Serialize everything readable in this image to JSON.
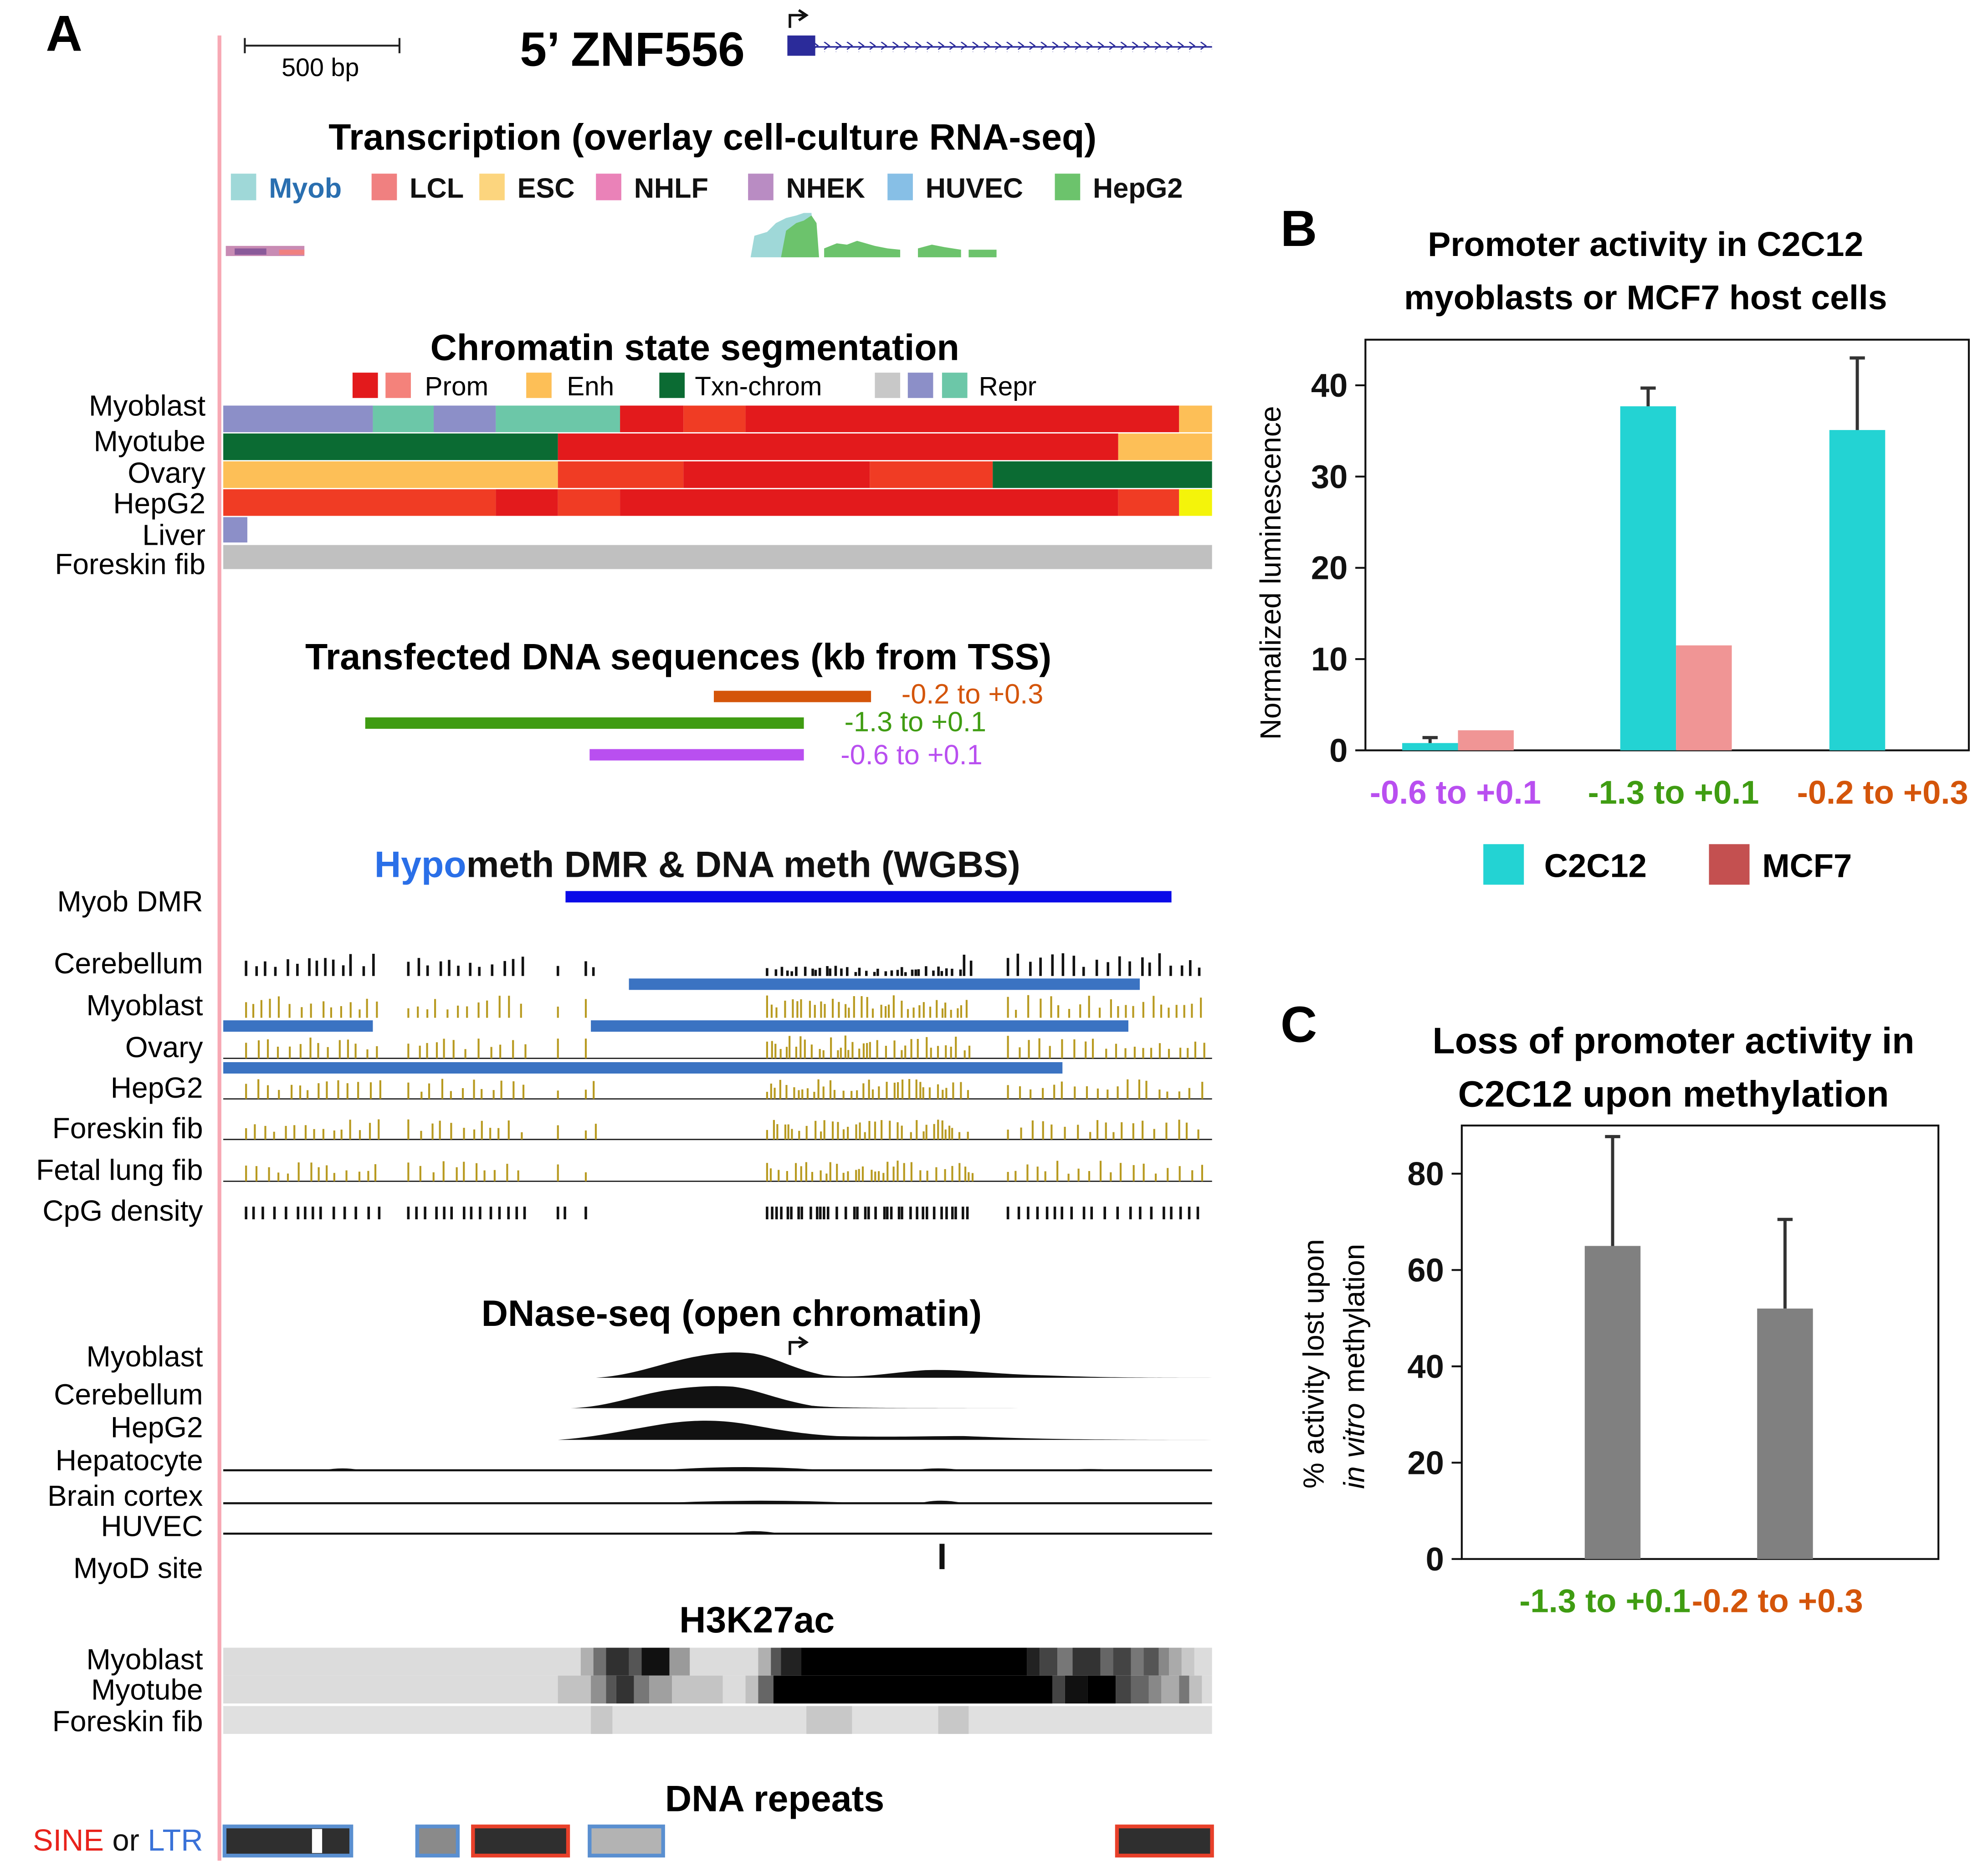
{
  "panel_a": {
    "letter": "A",
    "scale_label": "500 bp",
    "gene_label": "5’ ZNF556",
    "transcription": {
      "title": "Transcription (overlay cell-culture RNA-seq)",
      "legend": [
        {
          "label": "Myob",
          "color": "#9fd8d8",
          "text_color": "#2a6fb0"
        },
        {
          "label": "LCL",
          "color": "#f08080",
          "text_color": "#111111"
        },
        {
          "label": "ESC",
          "color": "#fcd57e",
          "text_color": "#111111"
        },
        {
          "label": "NHLF",
          "color": "#ea82b8",
          "text_color": "#111111"
        },
        {
          "label": "NHEK",
          "color": "#b98cc3",
          "text_color": "#111111"
        },
        {
          "label": "HUVEC",
          "color": "#87bfe6",
          "text_color": "#111111"
        },
        {
          "label": "HepG2",
          "color": "#6cc36c",
          "text_color": "#111111"
        }
      ]
    },
    "chromatin": {
      "title": "Chromatin state segmentation",
      "legend": {
        "prom": "Prom",
        "enh": "Enh",
        "txn": "Txn-chrom",
        "repr": "Repr"
      },
      "rows": [
        "Myoblast",
        "Myotube",
        "Ovary",
        "HepG2",
        "Liver",
        "Foreskin fib"
      ]
    },
    "transfected": {
      "title": "Transfected DNA sequences (kb from TSS)",
      "constructs": [
        {
          "label": "-0.2 to +0.3",
          "color": "#d4550a"
        },
        {
          "label": "-1.3 to +0.1",
          "color": "#3f9c12"
        },
        {
          "label": "-0.6 to +0.1",
          "color": "#b94ff0"
        }
      ]
    },
    "methylation": {
      "title_hypo": "Hypo",
      "title_rest": "meth DMR & DNA meth (WGBS)",
      "dmr_label": "Myob DMR",
      "rows": [
        "Cerebellum",
        "Myoblast",
        "Ovary",
        "HepG2",
        "Foreskin fib",
        "Fetal lung fib",
        "CpG density"
      ]
    },
    "dnase": {
      "title": "DNase-seq (open chromatin)",
      "rows": [
        "Myoblast",
        "Cerebellum",
        "HepG2",
        "Hepatocyte",
        "Brain cortex",
        "HUVEC"
      ],
      "myod_label": "MyoD site"
    },
    "h3k27ac": {
      "title": "H3K27ac",
      "rows": [
        "Myoblast",
        "Myotube",
        "Foreskin fib"
      ]
    },
    "repeats": {
      "title": "DNA repeats",
      "sine": "SINE",
      "or": "or",
      "ltr": "LTR"
    }
  },
  "chart_data": [
    {
      "panel": "B",
      "type": "bar",
      "title": "Promoter activity in C2C12 myoblasts or MCF7 host cells",
      "title_lines": [
        "Promoter activity in C2C12",
        "myoblasts or MCF7 host cells"
      ],
      "xlabel": "",
      "ylabel": "Normalized luminescence",
      "ylim": [
        0,
        45
      ],
      "yticks": [
        0,
        10,
        20,
        30,
        40
      ],
      "categories": [
        "-0.6 to +0.1",
        "-1.3 to +0.1",
        "-0.2 to +0.3"
      ],
      "category_colors": [
        "#b94ff0",
        "#3f9c12",
        "#d4550a"
      ],
      "series": [
        {
          "name": "C2C12",
          "color": "#23d3d3",
          "values": [
            0.8,
            37.7,
            35.1
          ],
          "errors": [
            0.6,
            2.0,
            7.9
          ]
        },
        {
          "name": "MCF7",
          "color": "#f09595",
          "legend_color": "#c45050",
          "values": [
            2.2,
            11.5,
            null
          ],
          "errors": [
            null,
            null,
            null
          ]
        }
      ],
      "legend": "bottom"
    },
    {
      "panel": "C",
      "type": "bar",
      "title": "Loss of promoter activity in C2C12 upon methylation",
      "title_lines": [
        "Loss of promoter activity in",
        "C2C12 upon methylation"
      ],
      "xlabel": "",
      "ylabel": "% activity lost upon in vitro methylation",
      "ylabel_line1": "% activity lost upon",
      "ylabel_line2_italic": "in vitro",
      "ylabel_line2_rest": "methylation",
      "ylim": [
        0,
        90
      ],
      "yticks": [
        0,
        20,
        40,
        60,
        80
      ],
      "categories": [
        "-1.3 to +0.1",
        "-0.2 to +0.3"
      ],
      "category_colors": [
        "#3f9c12",
        "#d4550a"
      ],
      "series": [
        {
          "name": "C2C12",
          "color": "#808080",
          "values": [
            65,
            52
          ],
          "errors": [
            22.7,
            18.5
          ]
        }
      ]
    }
  ]
}
